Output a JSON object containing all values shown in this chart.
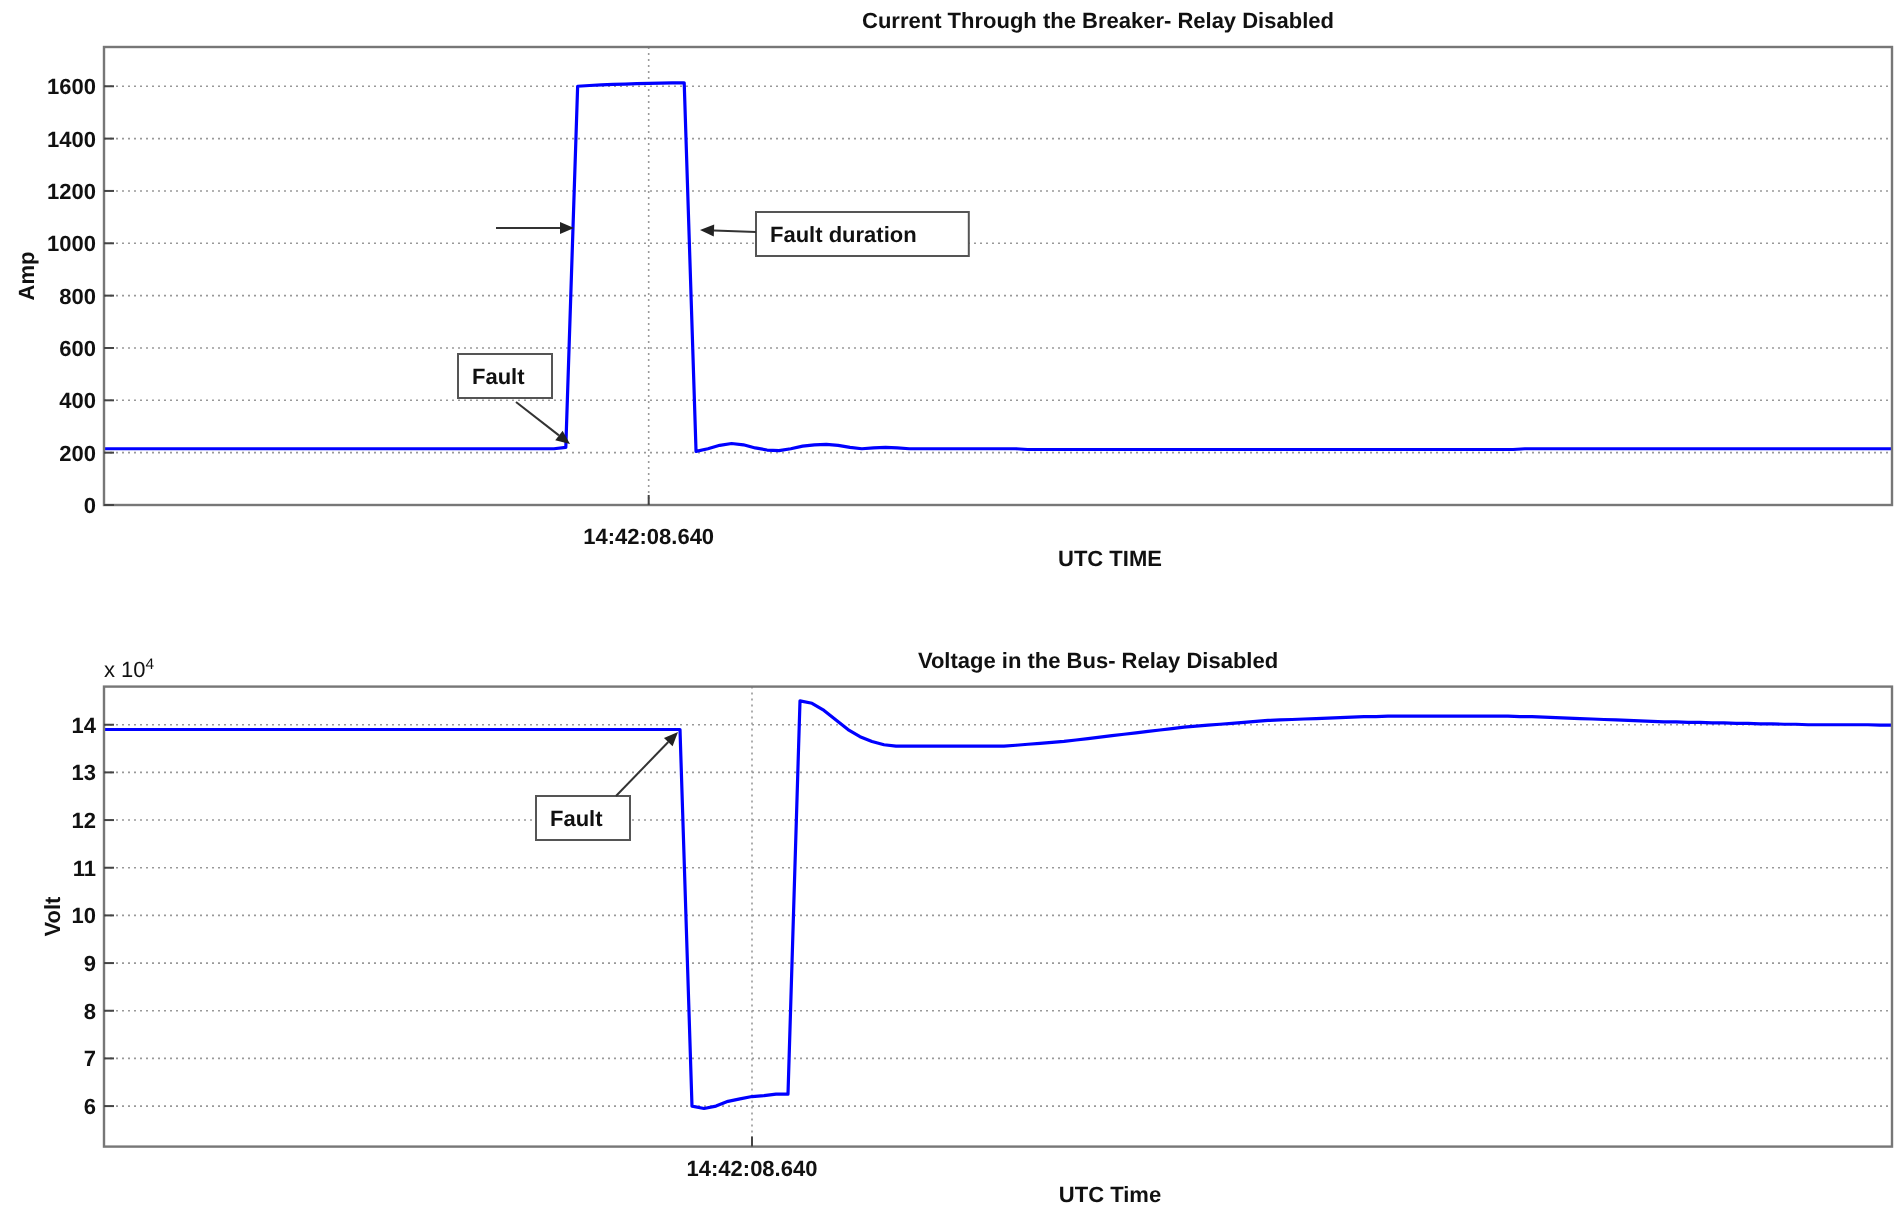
{
  "chart_data": [
    {
      "type": "line",
      "title": "Current Through the Breaker- Relay Disabled",
      "xlabel": "UTC TIME",
      "ylabel": "Amp",
      "grid": true,
      "ylim": [
        0,
        1750
      ],
      "yticks": [
        0,
        200,
        400,
        600,
        800,
        1000,
        1200,
        1400,
        1600
      ],
      "categories": [
        null,
        null,
        null,
        null,
        null,
        null,
        null,
        null,
        null,
        null,
        null,
        null,
        null,
        null,
        null,
        null,
        null,
        null,
        null,
        null,
        null,
        null,
        null,
        null,
        null,
        null,
        null,
        null,
        null,
        null,
        null,
        null,
        null,
        null,
        null,
        null,
        null,
        null,
        null,
        null,
        null,
        null,
        null,
        null,
        null,
        null,
        "14:42:08.640",
        null,
        null,
        null,
        null,
        null,
        null,
        null,
        null,
        null,
        null,
        null,
        null,
        null,
        null,
        null,
        null,
        null,
        null,
        null,
        null,
        null,
        null,
        null,
        null,
        null,
        null,
        null,
        null,
        null,
        null,
        null,
        null,
        null,
        null,
        null,
        null,
        null,
        null,
        null,
        null,
        null,
        null,
        null,
        null,
        null,
        null,
        null,
        null,
        null,
        null,
        null,
        null,
        null,
        null,
        null,
        null,
        null,
        null,
        null,
        null,
        null,
        null,
        null,
        null,
        null,
        null,
        null,
        null,
        null,
        null,
        null,
        null,
        null,
        null,
        null,
        null,
        null,
        null,
        null,
        null,
        null,
        null,
        null,
        null,
        null,
        null,
        null,
        null,
        null,
        null,
        null,
        null,
        null,
        null,
        null,
        null,
        null,
        null,
        null,
        null,
        null,
        null,
        null,
        null,
        null
      ],
      "series": [
        {
          "color": "#0000ff",
          "values": [
            215,
            215,
            215,
            215,
            215,
            215,
            215,
            215,
            215,
            215,
            215,
            215,
            215,
            215,
            215,
            215,
            215,
            215,
            215,
            215,
            215,
            215,
            215,
            215,
            215,
            215,
            215,
            215,
            215,
            215,
            215,
            215,
            215,
            215,
            215,
            215,
            215,
            215,
            215,
            220,
            1600,
            1603,
            1605,
            1607,
            1608,
            1610,
            1611,
            1612,
            1613,
            1613,
            205,
            215,
            228,
            235,
            230,
            218,
            210,
            208,
            215,
            225,
            230,
            232,
            228,
            220,
            215,
            218,
            220,
            218,
            215,
            215,
            215,
            215,
            215,
            215,
            215,
            215,
            215,
            215,
            212,
            212,
            212,
            212,
            212,
            212,
            212,
            212,
            212,
            212,
            212,
            212,
            212,
            212,
            212,
            212,
            212,
            212,
            212,
            212,
            212,
            212,
            212,
            212,
            212,
            212,
            212,
            212,
            212,
            212,
            212,
            212,
            212,
            212,
            212,
            212,
            212,
            212,
            212,
            212,
            212,
            212,
            215,
            215,
            215,
            215,
            215,
            215,
            215,
            215,
            215,
            215,
            215,
            215,
            215,
            215,
            215,
            215,
            215,
            215,
            215,
            215,
            215,
            215,
            215,
            215,
            215,
            215,
            215,
            215,
            215,
            215,
            215,
            215
          ]
        }
      ],
      "annotations": [
        "Fault",
        "Fault duration"
      ]
    },
    {
      "type": "line",
      "title": "Voltage in the Bus- Relay Disabled",
      "xlabel": "UTC Time",
      "ylabel": "Volt",
      "grid": true,
      "ylim": [
        5.15,
        14.8
      ],
      "yticks": [
        6,
        7,
        8,
        9,
        10,
        11,
        12,
        13,
        14
      ],
      "categories": [
        null,
        null,
        null,
        null,
        null,
        null,
        null,
        null,
        null,
        null,
        null,
        null,
        null,
        null,
        null,
        null,
        null,
        null,
        null,
        null,
        null,
        null,
        null,
        null,
        null,
        null,
        null,
        null,
        null,
        null,
        null,
        null,
        null,
        null,
        null,
        null,
        null,
        null,
        null,
        null,
        null,
        null,
        null,
        null,
        null,
        null,
        null,
        null,
        null,
        null,
        null,
        null,
        null,
        null,
        "14:42:08.640",
        null,
        null,
        null,
        null,
        null,
        null,
        null,
        null,
        null,
        null,
        null,
        null,
        null,
        null,
        null,
        null,
        null,
        null,
        null,
        null,
        null,
        null,
        null,
        null,
        null,
        null,
        null,
        null,
        null,
        null,
        null,
        null,
        null,
        null,
        null,
        null,
        null,
        null,
        null,
        null,
        null,
        null,
        null,
        null,
        null,
        null,
        null,
        null,
        null,
        null,
        null,
        null,
        null,
        null,
        null,
        null,
        null,
        null,
        null,
        null,
        null,
        null,
        null,
        null,
        null,
        null,
        null,
        null,
        null,
        null,
        null,
        null,
        null,
        null,
        null,
        null,
        null,
        null,
        null,
        null,
        null,
        null,
        null,
        null,
        null,
        null,
        null,
        null,
        null,
        null,
        null,
        null,
        null,
        null,
        null
      ],
      "series": [
        {
          "color": "#0000ff",
          "values": [
            13.9,
            13.9,
            13.9,
            13.9,
            13.9,
            13.9,
            13.9,
            13.9,
            13.9,
            13.9,
            13.9,
            13.9,
            13.9,
            13.9,
            13.9,
            13.9,
            13.9,
            13.9,
            13.9,
            13.9,
            13.9,
            13.9,
            13.9,
            13.9,
            13.9,
            13.9,
            13.9,
            13.9,
            13.9,
            13.9,
            13.9,
            13.9,
            13.9,
            13.9,
            13.9,
            13.9,
            13.9,
            13.9,
            13.9,
            13.9,
            13.9,
            13.9,
            13.9,
            13.9,
            13.9,
            13.9,
            13.9,
            13.9,
            13.9,
            6.0,
            5.95,
            6.0,
            6.1,
            6.15,
            6.2,
            6.22,
            6.25,
            6.25,
            14.5,
            14.45,
            14.3,
            14.1,
            13.9,
            13.75,
            13.65,
            13.58,
            13.55,
            13.55,
            13.55,
            13.55,
            13.55,
            13.55,
            13.55,
            13.55,
            13.55,
            13.55,
            13.57,
            13.59,
            13.61,
            13.63,
            13.65,
            13.68,
            13.71,
            13.74,
            13.77,
            13.8,
            13.83,
            13.86,
            13.89,
            13.92,
            13.95,
            13.97,
            13.99,
            14.01,
            14.03,
            14.05,
            14.07,
            14.09,
            14.1,
            14.11,
            14.12,
            14.13,
            14.14,
            14.15,
            14.16,
            14.17,
            14.17,
            14.18,
            14.18,
            14.18,
            14.18,
            14.18,
            14.18,
            14.18,
            14.18,
            14.18,
            14.18,
            14.18,
            14.17,
            14.17,
            14.16,
            14.15,
            14.14,
            14.13,
            14.12,
            14.11,
            14.1,
            14.09,
            14.08,
            14.07,
            14.06,
            14.06,
            14.05,
            14.05,
            14.04,
            14.04,
            14.03,
            14.03,
            14.02,
            14.02,
            14.01,
            14.01,
            14.0,
            14.0,
            14.0,
            14.0,
            14.0,
            14.0,
            13.99,
            13.99
          ]
        }
      ],
      "annotations": [
        "x 10$^{4}$",
        "Fault"
      ]
    }
  ]
}
